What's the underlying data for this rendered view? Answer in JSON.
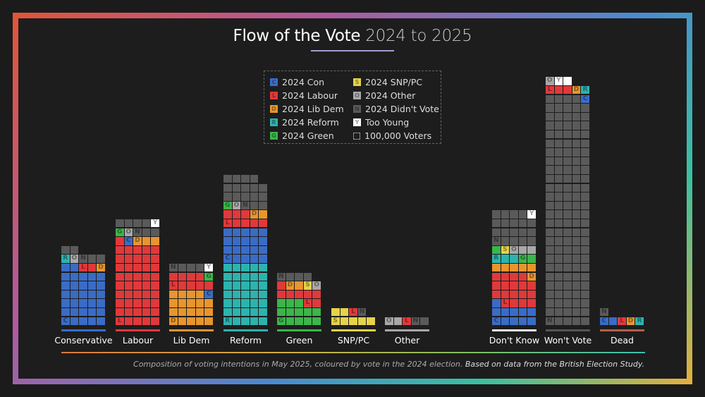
{
  "title": {
    "main": "Flow of the Vote",
    "sub": "2024 to 2025"
  },
  "colors": {
    "C": "#3a6cc6",
    "L": "#e0393b",
    "D": "#e8952e",
    "R": "#2db3ae",
    "G": "#3cb54a",
    "S": "#e6d24a",
    "O": "#a8a8a8",
    "N": "#5a5a5a",
    "Y": "#ffffff"
  },
  "legend": [
    {
      "code": "C",
      "label": "2024 Con"
    },
    {
      "code": "L",
      "label": "2024 Labour"
    },
    {
      "code": "D",
      "label": "2024 Lib Dem"
    },
    {
      "code": "R",
      "label": "2024 Reform"
    },
    {
      "code": "G",
      "label": "2024 Green"
    },
    {
      "code": "S",
      "label": "2024 SNP/PC"
    },
    {
      "code": "O",
      "label": "2024 Other"
    },
    {
      "code": "N",
      "label": "2024 Didn't Vote"
    },
    {
      "code": "Y",
      "label": "Too Young"
    },
    {
      "code": "",
      "label": "100,000 Voters"
    }
  ],
  "chart_data": {
    "type": "waffle",
    "unit": "100,000 Voters",
    "categories": [
      "Conservative",
      "Labour",
      "Lib Dem",
      "Reform",
      "Green",
      "SNP/PC",
      "Other",
      "Don't Know",
      "Won't Vote",
      "Dead"
    ],
    "underline_colors": [
      "#3a6cc6",
      "#e0393b",
      "#e8952e",
      "#2db3ae",
      "#3cb54a",
      "#e6d24a",
      "#a8a8a8",
      "#e8e8e8",
      "#555555",
      "#b0604a"
    ],
    "bars": [
      [
        [
          "C",
          32
        ],
        [
          "L",
          2
        ],
        [
          "D",
          1
        ],
        [
          "R",
          1
        ],
        [
          "O",
          1
        ],
        [
          "N",
          5
        ]
      ],
      [
        [
          "L",
          46
        ],
        [
          "C",
          1
        ],
        [
          "D",
          3
        ],
        [
          "G",
          1
        ],
        [
          "O",
          1
        ],
        [
          "N",
          7
        ],
        [
          "Y",
          1
        ]
      ],
      [
        [
          "D",
          19
        ],
        [
          "C",
          1
        ],
        [
          "L",
          9
        ],
        [
          "G",
          1
        ],
        [
          "N",
          4
        ],
        [
          "Y",
          1
        ]
      ],
      [
        [
          "R",
          35
        ],
        [
          "C",
          20
        ],
        [
          "L",
          8
        ],
        [
          "D",
          2
        ],
        [
          "G",
          1
        ],
        [
          "O",
          1
        ],
        [
          "N",
          17
        ]
      ],
      [
        [
          "G",
          13
        ],
        [
          "L",
          8
        ],
        [
          "D",
          2
        ],
        [
          "S",
          1
        ],
        [
          "O",
          1
        ],
        [
          "N",
          4
        ]
      ],
      [
        [
          "S",
          7
        ],
        [
          "L",
          1
        ],
        [
          "N",
          1
        ]
      ],
      [
        [
          "O",
          2
        ],
        [
          "L",
          1
        ],
        [
          "N",
          2
        ]
      ],
      [
        [
          "C",
          11
        ],
        [
          "L",
          18
        ],
        [
          "D",
          6
        ],
        [
          "R",
          3
        ],
        [
          "G",
          3
        ],
        [
          "S",
          1
        ],
        [
          "O",
          3
        ],
        [
          "N",
          19
        ],
        [
          "Y",
          1
        ]
      ],
      [
        [
          "N",
          129
        ],
        [
          "C",
          1
        ],
        [
          "L",
          3
        ],
        [
          "D",
          1
        ],
        [
          "R",
          1
        ],
        [
          "O",
          1
        ],
        [
          "Y",
          2
        ]
      ],
      [
        [
          "C",
          2
        ],
        [
          "L",
          1
        ],
        [
          "D",
          1
        ],
        [
          "R",
          1
        ],
        [
          "N",
          1
        ]
      ]
    ]
  },
  "caption": {
    "main": "Composition of voting intentions in May 2025, coloured by vote in the 2024 election.",
    "source": "Based on data from the British Election Study."
  }
}
